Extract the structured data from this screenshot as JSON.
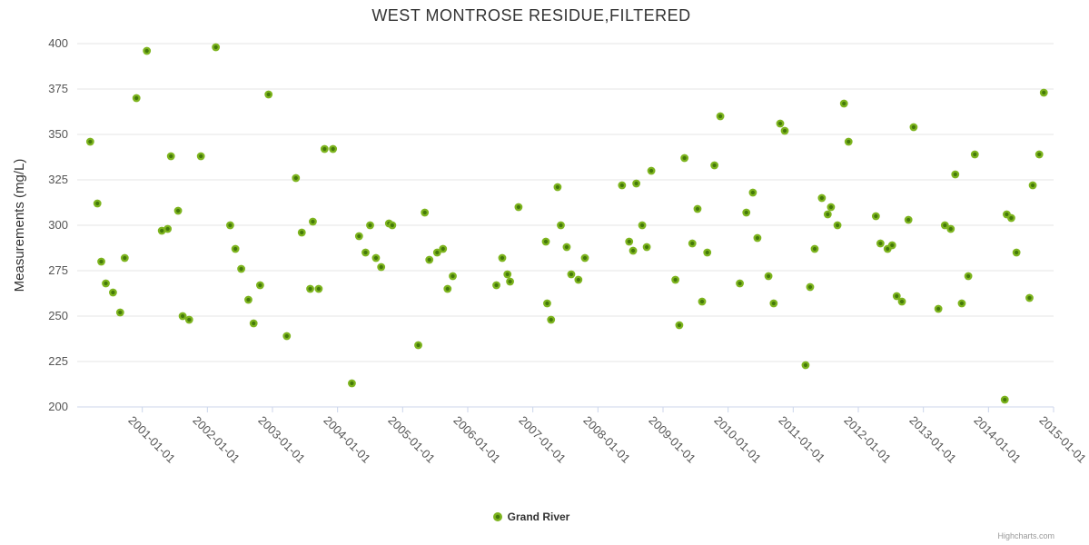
{
  "credits_label": "Highcharts.com",
  "chart_data": {
    "type": "scatter",
    "title": "WEST MONTROSE RESIDUE,FILTERED",
    "xlabel": "",
    "ylabel": "Measurements (mg/L)",
    "ylim": [
      200,
      400
    ],
    "xlim_years": [
      2000,
      2015
    ],
    "y_ticks": [
      200,
      225,
      250,
      275,
      300,
      325,
      350,
      375,
      400
    ],
    "x_tick_labels": [
      "2001-01-01",
      "2002-01-01",
      "2003-01-01",
      "2004-01-01",
      "2005-01-01",
      "2006-01-01",
      "2007-01-01",
      "2008-01-01",
      "2009-01-01",
      "2010-01-01",
      "2011-01-01",
      "2012-01-01",
      "2013-01-01",
      "2014-01-01",
      "2015-01-01"
    ],
    "grid": "horizontal",
    "legend_position": "bottom-center",
    "colors": {
      "marker_outer": "#7db41e",
      "marker_inner": "#44790a",
      "gridline": "#e6e6e6",
      "axis_line": "#ccd6eb",
      "text": "#333333"
    },
    "series": [
      {
        "name": "Grand River",
        "points": [
          [
            2000.2,
            346
          ],
          [
            2000.31,
            312
          ],
          [
            2000.37,
            280
          ],
          [
            2000.44,
            268
          ],
          [
            2000.55,
            263
          ],
          [
            2000.66,
            252
          ],
          [
            2000.73,
            282
          ],
          [
            2000.91,
            370
          ],
          [
            2001.07,
            396
          ],
          [
            2001.3,
            297
          ],
          [
            2001.39,
            298
          ],
          [
            2001.44,
            338
          ],
          [
            2001.55,
            308
          ],
          [
            2001.62,
            250
          ],
          [
            2001.72,
            248
          ],
          [
            2001.9,
            338
          ],
          [
            2002.13,
            398
          ],
          [
            2002.35,
            300
          ],
          [
            2002.43,
            287
          ],
          [
            2002.52,
            276
          ],
          [
            2002.63,
            259
          ],
          [
            2002.71,
            246
          ],
          [
            2002.81,
            267
          ],
          [
            2002.94,
            372
          ],
          [
            2003.22,
            239
          ],
          [
            2003.36,
            326
          ],
          [
            2003.45,
            296
          ],
          [
            2003.58,
            265
          ],
          [
            2003.62,
            302
          ],
          [
            2003.71,
            265
          ],
          [
            2003.8,
            342
          ],
          [
            2003.93,
            342
          ],
          [
            2004.22,
            213
          ],
          [
            2004.33,
            294
          ],
          [
            2004.43,
            285
          ],
          [
            2004.5,
            300
          ],
          [
            2004.59,
            282
          ],
          [
            2004.67,
            277
          ],
          [
            2004.79,
            301
          ],
          [
            2004.84,
            300
          ],
          [
            2005.24,
            234
          ],
          [
            2005.34,
            307
          ],
          [
            2005.41,
            281
          ],
          [
            2005.53,
            285
          ],
          [
            2005.62,
            287
          ],
          [
            2005.69,
            265
          ],
          [
            2005.77,
            272
          ],
          [
            2006.44,
            267
          ],
          [
            2006.53,
            282
          ],
          [
            2006.61,
            273
          ],
          [
            2006.65,
            269
          ],
          [
            2006.78,
            310
          ],
          [
            2007.2,
            291
          ],
          [
            2007.22,
            257
          ],
          [
            2007.28,
            248
          ],
          [
            2007.38,
            321
          ],
          [
            2007.43,
            300
          ],
          [
            2007.52,
            288
          ],
          [
            2007.59,
            273
          ],
          [
            2007.7,
            270
          ],
          [
            2007.8,
            282
          ],
          [
            2008.37,
            322
          ],
          [
            2008.48,
            291
          ],
          [
            2008.54,
            286
          ],
          [
            2008.59,
            323
          ],
          [
            2008.68,
            300
          ],
          [
            2008.75,
            288
          ],
          [
            2008.82,
            330
          ],
          [
            2009.19,
            270
          ],
          [
            2009.25,
            245
          ],
          [
            2009.33,
            337
          ],
          [
            2009.45,
            290
          ],
          [
            2009.53,
            309
          ],
          [
            2009.6,
            258
          ],
          [
            2009.68,
            285
          ],
          [
            2009.79,
            333
          ],
          [
            2009.88,
            360
          ],
          [
            2010.18,
            268
          ],
          [
            2010.28,
            307
          ],
          [
            2010.38,
            318
          ],
          [
            2010.45,
            293
          ],
          [
            2010.62,
            272
          ],
          [
            2010.7,
            257
          ],
          [
            2010.8,
            356
          ],
          [
            2010.87,
            352
          ],
          [
            2011.19,
            223
          ],
          [
            2011.26,
            266
          ],
          [
            2011.33,
            287
          ],
          [
            2011.44,
            315
          ],
          [
            2011.53,
            306
          ],
          [
            2011.58,
            310
          ],
          [
            2011.68,
            300
          ],
          [
            2011.78,
            367
          ],
          [
            2011.85,
            346
          ],
          [
            2012.27,
            305
          ],
          [
            2012.34,
            290
          ],
          [
            2012.45,
            287
          ],
          [
            2012.52,
            289
          ],
          [
            2012.59,
            261
          ],
          [
            2012.67,
            258
          ],
          [
            2012.77,
            303
          ],
          [
            2012.85,
            354
          ],
          [
            2013.23,
            254
          ],
          [
            2013.33,
            300
          ],
          [
            2013.42,
            298
          ],
          [
            2013.49,
            328
          ],
          [
            2013.59,
            257
          ],
          [
            2013.69,
            272
          ],
          [
            2013.79,
            339
          ],
          [
            2014.25,
            204
          ],
          [
            2014.28,
            306
          ],
          [
            2014.35,
            304
          ],
          [
            2014.43,
            285
          ],
          [
            2014.63,
            260
          ],
          [
            2014.68,
            322
          ],
          [
            2014.78,
            339
          ],
          [
            2014.85,
            373
          ]
        ]
      }
    ]
  }
}
